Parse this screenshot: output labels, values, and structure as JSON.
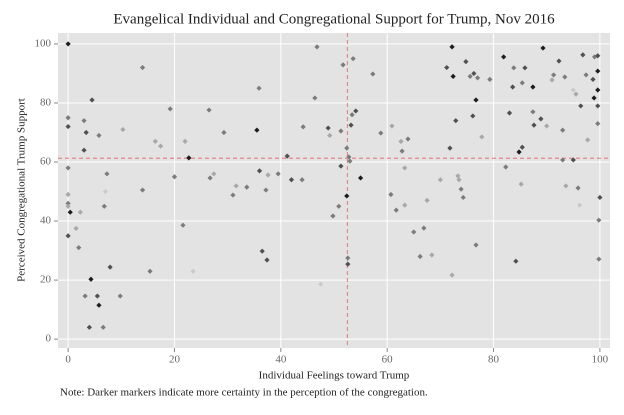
{
  "chart_data": {
    "type": "scatter",
    "title": "Evangelical Individual and Congregational Support for Trump, Nov 2016",
    "x_label": "Individual Feelings toward Trump",
    "y_label": "Perceived Congregational Trump Support",
    "note": "Note: Darker markers indicate more certainty in the perception of the congregation.",
    "xlim": [
      -1.9,
      101.9
    ],
    "ylim": [
      -3,
      103.7
    ],
    "xticks": [
      0,
      20,
      40,
      60,
      80,
      100
    ],
    "yticks": [
      0,
      20,
      40,
      60,
      80,
      100
    ],
    "grid": true,
    "background": "#e3e3e3",
    "reference_color": "#e06060",
    "vline": 52.5,
    "hline": 61.3,
    "series": [
      {
        "x": [
          0,
          0,
          0,
          0,
          0,
          0,
          0,
          0.4,
          0,
          1.5,
          2,
          2.3,
          3,
          3,
          3.4,
          4.5,
          5.8,
          4.3,
          4,
          3.2,
          5.5,
          5.8,
          6.6,
          7.3,
          6.8,
          7,
          7.9,
          9.8,
          10.3,
          14,
          14,
          15.4,
          16.4,
          17.4,
          19.2,
          20,
          21.6,
          22,
          22.7,
          23.5,
          26.5,
          26.7,
          27.4,
          29.3,
          31,
          31.6,
          33.6,
          35.5,
          35.9,
          36,
          36.5,
          37.2,
          37.6,
          37.4,
          39.5,
          41.2,
          42,
          44,
          44.2,
          46.4,
          46.8,
          47.5,
          48.9,
          49.2,
          49.8,
          50.9,
          51.3,
          51.3,
          51.7,
          52.4,
          52.4,
          52.6,
          52.6,
          52.8,
          53,
          53.2,
          53.4,
          53.6,
          54.1,
          55,
          57.3,
          58.8,
          60.9,
          60.7,
          61.7,
          62.8,
          63.3,
          63.3,
          62.6,
          63.9,
          65,
          66.9,
          67.5,
          66.2,
          68.4,
          70,
          71.2,
          71.8,
          72.2,
          72.4,
          72.2,
          72.9,
          73.5,
          73.9,
          74.3,
          73.3,
          74.8,
          75.6,
          76.3,
          76.1,
          76.7,
          76.7,
          77,
          77.8,
          79.3,
          81.9,
          82.3,
          83,
          83.6,
          83.8,
          84.2,
          84.8,
          85.4,
          85.2,
          85.4,
          85.9,
          87.4,
          87.4,
          87.6,
          88.9,
          89.3,
          90,
          91,
          91.3,
          92.3,
          93,
          93.4,
          93,
          93.6,
          95,
          95.5,
          95.9,
          96.2,
          96.4,
          96.8,
          97.4,
          97.7,
          98.7,
          98.9,
          99,
          99.6,
          99.6,
          99.6,
          99.6,
          99.6,
          100,
          99.8,
          99.8,
          95
        ],
        "values": [
          100,
          75,
          72,
          58,
          49,
          46,
          45,
          43,
          35,
          37.5,
          31,
          43,
          64,
          74,
          70,
          81,
          69,
          20.3,
          4,
          14.6,
          14.6,
          11.5,
          4,
          56,
          45,
          50,
          24.4,
          14.6,
          71,
          92,
          50.5,
          23,
          67,
          65.4,
          78,
          55,
          38.6,
          67,
          61.4,
          23,
          77.6,
          54.6,
          56,
          70,
          48.8,
          51.9,
          51.5,
          70.8,
          85,
          57,
          29.8,
          50.5,
          55.6,
          26.8,
          56,
          62,
          54,
          54,
          71.9,
          81.7,
          99,
          18.6,
          71.5,
          69,
          41.7,
          45,
          58.6,
          70.5,
          92.9,
          64.7,
          48.5,
          27.5,
          25.4,
          61.7,
          60.3,
          72.5,
          76,
          95,
          77.3,
          54.6,
          89.8,
          69.8,
          72.2,
          49,
          43.7,
          63.7,
          58,
          45.4,
          67,
          67.8,
          36.3,
          37.6,
          47,
          28,
          28.5,
          54,
          92,
          64.7,
          99,
          89,
          21.7,
          74,
          54,
          50.8,
          48,
          55.3,
          94,
          89,
          90,
          75.6,
          81,
          31.9,
          88.5,
          68.5,
          88,
          95.6,
          58.3,
          76.6,
          85.4,
          91.9,
          26.4,
          63.4,
          65,
          52.5,
          86.8,
          91.9,
          85.4,
          77,
          72.5,
          74.6,
          98.6,
          72.2,
          87.8,
          89.5,
          94.2,
          70.8,
          88.8,
          60.7,
          51.9,
          60.7,
          83,
          51.2,
          45.4,
          79,
          96.3,
          89.5,
          67.5,
          88,
          81.7,
          95.6,
          96,
          90.8,
          84.4,
          79,
          73,
          48,
          40.3,
          27.1,
          84.4
        ],
        "colors": [
          "#1c1c1c",
          "#7c7c7c",
          "#505050",
          "#7c7c7c",
          "#a8a8a8",
          "#7c7c7c",
          "#a8a8a8",
          "#1c1c1c",
          "#505050",
          "#a8a8a8",
          "#7c7c7c",
          "#a8a8a8",
          "#505050",
          "#7c7c7c",
          "#505050",
          "#505050",
          "#7c7c7c",
          "#1c1c1c",
          "#505050",
          "#7c7c7c",
          "#505050",
          "#1c1c1c",
          "#7c7c7c",
          "#7c7c7c",
          "#7c7c7c",
          "#cacaca",
          "#505050",
          "#7c7c7c",
          "#a8a8a8",
          "#7c7c7c",
          "#7c7c7c",
          "#7c7c7c",
          "#a8a8a8",
          "#a8a8a8",
          "#7c7c7c",
          "#7c7c7c",
          "#7c7c7c",
          "#a8a8a8",
          "#1c1c1c",
          "#cacaca",
          "#7c7c7c",
          "#7c7c7c",
          "#a8a8a8",
          "#7c7c7c",
          "#7c7c7c",
          "#a8a8a8",
          "#7c7c7c",
          "#1c1c1c",
          "#7c7c7c",
          "#505050",
          "#505050",
          "#7c7c7c",
          "#a8a8a8",
          "#505050",
          "#7c7c7c",
          "#505050",
          "#505050",
          "#7c7c7c",
          "#7c7c7c",
          "#7c7c7c",
          "#7c7c7c",
          "#cacaca",
          "#505050",
          "#a8a8a8",
          "#7c7c7c",
          "#7c7c7c",
          "#505050",
          "#7c7c7c",
          "#7c7c7c",
          "#7c7c7c",
          "#1c1c1c",
          "#7c7c7c",
          "#505050",
          "#7c7c7c",
          "#7c7c7c",
          "#505050",
          "#7c7c7c",
          "#7c7c7c",
          "#505050",
          "#1c1c1c",
          "#7c7c7c",
          "#7c7c7c",
          "#a8a8a8",
          "#7c7c7c",
          "#7c7c7c",
          "#7c7c7c",
          "#a8a8a8",
          "#a8a8a8",
          "#a8a8a8",
          "#7c7c7c",
          "#7c7c7c",
          "#7c7c7c",
          "#a8a8a8",
          "#7c7c7c",
          "#a8a8a8",
          "#a8a8a8",
          "#505050",
          "#505050",
          "#1c1c1c",
          "#1c1c1c",
          "#a8a8a8",
          "#505050",
          "#a8a8a8",
          "#7c7c7c",
          "#7c7c7c",
          "#a8a8a8",
          "#505050",
          "#7c7c7c",
          "#505050",
          "#505050",
          "#1c1c1c",
          "#7c7c7c",
          "#7c7c7c",
          "#a8a8a8",
          "#7c7c7c",
          "#1c1c1c",
          "#7c7c7c",
          "#505050",
          "#505050",
          "#7c7c7c",
          "#505050",
          "#1c1c1c",
          "#505050",
          "#a8a8a8",
          "#7c7c7c",
          "#505050",
          "#1c1c1c",
          "#7c7c7c",
          "#505050",
          "#505050",
          "#1c1c1c",
          "#a8a8a8",
          "#a8a8a8",
          "#7c7c7c",
          "#505050",
          "#7c7c7c",
          "#7c7c7c",
          "#7c7c7c",
          "#a8a8a8",
          "#505050",
          "#a8a8a8",
          "#7c7c7c",
          "#cacaca",
          "#505050",
          "#505050",
          "#7c7c7c",
          "#a8a8a8",
          "#505050",
          "#1c1c1c",
          "#7c7c7c",
          "#505050",
          "#1c1c1c",
          "#1c1c1c",
          "#505050",
          "#7c7c7c",
          "#505050",
          "#7c7c7c",
          "#7c7c7c",
          "#cacaca"
        ]
      }
    ]
  }
}
